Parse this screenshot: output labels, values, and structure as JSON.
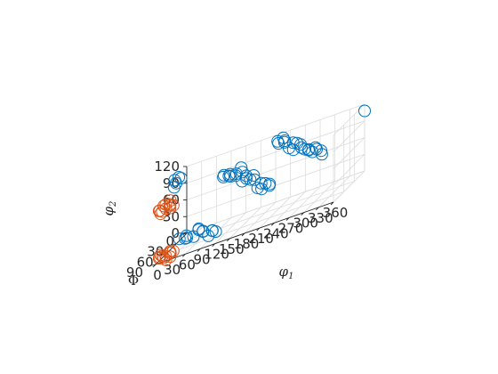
{
  "chart_data": {
    "type": "scatter",
    "projection": "3d",
    "grid": true,
    "xlabel": "φ",
    "xlabel_sub": "1",
    "ylabel": "Φ",
    "zlabel": "φ",
    "zlabel_sub": "2",
    "x_ticks": [
      "0",
      "30",
      "60",
      "90",
      "120",
      "150",
      "180",
      "210",
      "240",
      "270",
      "300",
      "330",
      "360"
    ],
    "y_ticks": [
      "0",
      "30",
      "60",
      "90"
    ],
    "z_ticks": [
      "0",
      "30",
      "60",
      "90",
      "120"
    ],
    "xlim": [
      0,
      360
    ],
    "ylim": [
      0,
      90
    ],
    "zlim": [
      0,
      120
    ],
    "series": [
      {
        "color": "#0072BD",
        "points": [
          [
            5,
            42,
            120
          ],
          [
            10,
            45,
            115
          ],
          [
            12,
            40,
            122
          ],
          [
            8,
            48,
            110
          ],
          [
            15,
            38,
            118
          ],
          [
            20,
            50,
            15
          ],
          [
            28,
            45,
            10
          ],
          [
            35,
            50,
            12
          ],
          [
            38,
            55,
            18
          ],
          [
            45,
            45,
            8
          ],
          [
            52,
            40,
            15
          ],
          [
            58,
            48,
            20
          ],
          [
            62,
            42,
            10
          ],
          [
            68,
            50,
            14
          ],
          [
            75,
            45,
            0
          ],
          [
            80,
            40,
            5
          ],
          [
            85,
            48,
            8
          ],
          [
            88,
            42,
            2
          ],
          [
            95,
            30,
            90
          ],
          [
            100,
            35,
            95
          ],
          [
            105,
            28,
            88
          ],
          [
            110,
            32,
            92
          ],
          [
            115,
            38,
            90
          ],
          [
            120,
            30,
            85
          ],
          [
            125,
            35,
            90
          ],
          [
            130,
            28,
            95
          ],
          [
            135,
            32,
            88
          ],
          [
            140,
            40,
            75
          ],
          [
            145,
            35,
            80
          ],
          [
            150,
            42,
            78
          ],
          [
            155,
            38,
            72
          ],
          [
            160,
            35,
            76
          ],
          [
            165,
            40,
            70
          ],
          [
            175,
            45,
            55
          ],
          [
            180,
            42,
            60
          ],
          [
            185,
            48,
            52
          ],
          [
            190,
            44,
            58
          ],
          [
            195,
            40,
            50
          ],
          [
            200,
            46,
            55
          ],
          [
            205,
            30,
            120
          ],
          [
            210,
            35,
            118
          ],
          [
            215,
            28,
            122
          ],
          [
            220,
            32,
            115
          ],
          [
            225,
            38,
            120
          ],
          [
            235,
            40,
            105
          ],
          [
            240,
            35,
            110
          ],
          [
            245,
            42,
            100
          ],
          [
            250,
            38,
            108
          ],
          [
            255,
            35,
            102
          ],
          [
            260,
            40,
            98
          ],
          [
            270,
            45,
            95
          ],
          [
            275,
            40,
            90
          ],
          [
            280,
            48,
            92
          ],
          [
            285,
            44,
            85
          ],
          [
            290,
            42,
            90
          ],
          [
            295,
            46,
            88
          ],
          [
            300,
            40,
            80
          ],
          [
            305,
            45,
            75
          ],
          [
            360,
            0,
            108
          ]
        ]
      },
      {
        "color": "#D95319",
        "points": [
          [
            0,
            80,
            90
          ],
          [
            5,
            85,
            92
          ],
          [
            8,
            78,
            95
          ],
          [
            12,
            88,
            90
          ],
          [
            15,
            82,
            98
          ],
          [
            18,
            86,
            92
          ],
          [
            22,
            80,
            95
          ],
          [
            25,
            84,
            90
          ],
          [
            28,
            88,
            96
          ],
          [
            10,
            90,
            88
          ],
          [
            20,
            76,
            100
          ],
          [
            30,
            82,
            92
          ],
          [
            0,
            80,
            5
          ],
          [
            5,
            85,
            8
          ],
          [
            8,
            78,
            2
          ],
          [
            12,
            88,
            10
          ],
          [
            15,
            82,
            5
          ],
          [
            18,
            86,
            0
          ],
          [
            22,
            80,
            8
          ],
          [
            25,
            84,
            12
          ],
          [
            28,
            88,
            4
          ],
          [
            10,
            90,
            14
          ],
          [
            20,
            76,
            6
          ],
          [
            30,
            82,
            10
          ]
        ]
      }
    ]
  }
}
